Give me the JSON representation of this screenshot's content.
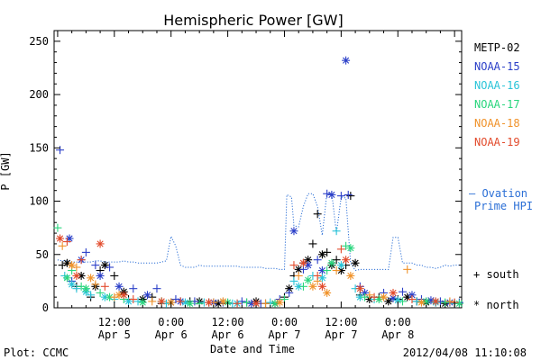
{
  "chart_data": {
    "type": "scatter",
    "title": "Hemispheric Power [GW]",
    "ylabel": "P [GW]",
    "xlabel": "Date and Time",
    "ylim": [
      0,
      260
    ],
    "yticks": [
      0,
      50,
      100,
      150,
      200,
      250
    ],
    "xlim": [
      -0.75,
      85.5
    ],
    "x_units": "hours since 2012-04-05 00:00 UT",
    "x_ticks": [
      {
        "x": 12,
        "time": "12:00",
        "date": "Apr 5"
      },
      {
        "x": 24,
        "time": "0:00",
        "date": "Apr 6"
      },
      {
        "x": 36,
        "time": "12:00",
        "date": "Apr 6"
      },
      {
        "x": 48,
        "time": "0:00",
        "date": "Apr 7"
      },
      {
        "x": 60,
        "time": "12:00",
        "date": "Apr 7"
      },
      {
        "x": 72,
        "time": "0:00",
        "date": "Apr 8"
      }
    ],
    "grid": false,
    "legend_position": "right",
    "legend": [
      {
        "name": "METP-02",
        "color": "#000000"
      },
      {
        "name": "NOAA-15",
        "color": "#2b3fc8"
      },
      {
        "name": "NOAA-16",
        "color": "#2ac4d8"
      },
      {
        "name": "NOAA-17",
        "color": "#29d67d"
      },
      {
        "name": "NOAA-18",
        "color": "#f0922a"
      },
      {
        "name": "NOAA-19",
        "color": "#e24a2b"
      }
    ],
    "ovation_label_line1": "– Ovation",
    "ovation_label_line2": "Prime HPI",
    "ovation_color": "#2b6fd6",
    "marker_south_label": "+ south",
    "marker_north_label": "* north",
    "ovation": {
      "x": [
        0,
        1,
        2,
        3,
        4,
        5,
        6,
        7,
        8,
        9,
        10,
        11,
        12,
        13,
        14,
        15,
        16,
        17,
        18,
        19,
        20,
        21,
        22,
        23,
        24,
        25,
        26,
        27,
        28,
        29,
        30,
        31,
        32,
        33,
        34,
        35,
        36,
        37,
        38,
        39,
        40,
        41,
        42,
        43,
        44,
        45,
        46,
        47,
        48,
        48.5,
        49.5,
        50,
        51,
        52,
        53,
        54,
        55,
        56,
        57,
        58,
        59,
        60,
        61,
        62,
        63,
        64,
        65,
        66,
        67,
        68,
        69,
        70,
        71,
        72,
        73,
        74,
        75,
        76,
        77,
        78,
        79,
        80,
        81,
        82,
        83,
        84,
        85
      ],
      "y": [
        45,
        44,
        44,
        43,
        43,
        43,
        43,
        43,
        44,
        44,
        43,
        43,
        43,
        43,
        44,
        43,
        43,
        42,
        42,
        42,
        42,
        42,
        43,
        44,
        67,
        58,
        40,
        38,
        38,
        38,
        40,
        39,
        39,
        39,
        39,
        39,
        39,
        39,
        39,
        38,
        38,
        38,
        38,
        38,
        37,
        37,
        37,
        36,
        36,
        106,
        104,
        77,
        76,
        95,
        107,
        107,
        95,
        68,
        108,
        108,
        70,
        104,
        103,
        42,
        35,
        36,
        36,
        36,
        36,
        36,
        36,
        36,
        66,
        66,
        42,
        42,
        42,
        40,
        40,
        38,
        38,
        37,
        38,
        40,
        39,
        40,
        40
      ]
    },
    "series": [
      {
        "name": "METP-02",
        "color": "#000000",
        "marker": "+",
        "points": [
          [
            1,
            40
          ],
          [
            4,
            20
          ],
          [
            7,
            10
          ],
          [
            9,
            35
          ],
          [
            12,
            30
          ],
          [
            15,
            8
          ],
          [
            20,
            10
          ],
          [
            22,
            4
          ],
          [
            28,
            6
          ],
          [
            32,
            5
          ],
          [
            36,
            4
          ],
          [
            40,
            5
          ],
          [
            44,
            4
          ],
          [
            48,
            10
          ],
          [
            50,
            30
          ],
          [
            52,
            42
          ],
          [
            54,
            60
          ],
          [
            55,
            88
          ],
          [
            57,
            52
          ],
          [
            59,
            45
          ],
          [
            61,
            40
          ],
          [
            62,
            105
          ],
          [
            64,
            12
          ],
          [
            68,
            10
          ],
          [
            72,
            8
          ],
          [
            76,
            6
          ],
          [
            80,
            5
          ],
          [
            84,
            4
          ]
        ]
      },
      {
        "name": "METP-02",
        "color": "#000000",
        "marker": "*",
        "points": [
          [
            2,
            42
          ],
          [
            5,
            30
          ],
          [
            8,
            20
          ],
          [
            10,
            40
          ],
          [
            14,
            15
          ],
          [
            18,
            8
          ],
          [
            24,
            5
          ],
          [
            30,
            6
          ],
          [
            34,
            4
          ],
          [
            42,
            6
          ],
          [
            46,
            4
          ],
          [
            49,
            18
          ],
          [
            51,
            36
          ],
          [
            53,
            45
          ],
          [
            56,
            50
          ],
          [
            58,
            40
          ],
          [
            60,
            35
          ],
          [
            63,
            42
          ],
          [
            66,
            8
          ],
          [
            70,
            6
          ],
          [
            74,
            10
          ],
          [
            78,
            5
          ],
          [
            82,
            4
          ]
        ]
      },
      {
        "name": "NOAA-15",
        "color": "#2b3fc8",
        "marker": "+",
        "points": [
          [
            0.5,
            148
          ],
          [
            3,
            25
          ],
          [
            6,
            52
          ],
          [
            8,
            40
          ],
          [
            11,
            38
          ],
          [
            16,
            18
          ],
          [
            21,
            18
          ],
          [
            25,
            8
          ],
          [
            29,
            6
          ],
          [
            35,
            5
          ],
          [
            39,
            6
          ],
          [
            43,
            4
          ],
          [
            47,
            8
          ],
          [
            49,
            14
          ],
          [
            52,
            36
          ],
          [
            55,
            45
          ],
          [
            57,
            107
          ],
          [
            60,
            105
          ],
          [
            61.5,
            106
          ],
          [
            64,
            20
          ],
          [
            69,
            14
          ],
          [
            73,
            15
          ],
          [
            77,
            8
          ],
          [
            81,
            6
          ],
          [
            85,
            5
          ]
        ]
      },
      {
        "name": "NOAA-15",
        "color": "#2b3fc8",
        "marker": "*",
        "points": [
          [
            2.5,
            65
          ],
          [
            5,
            45
          ],
          [
            9,
            30
          ],
          [
            13,
            20
          ],
          [
            19,
            12
          ],
          [
            26,
            6
          ],
          [
            33,
            5
          ],
          [
            41,
            4
          ],
          [
            50,
            72
          ],
          [
            53,
            40
          ],
          [
            56,
            35
          ],
          [
            58,
            106
          ],
          [
            61,
            232
          ],
          [
            65,
            14
          ],
          [
            71,
            9
          ],
          [
            75,
            12
          ],
          [
            79,
            7
          ],
          [
            83,
            5
          ]
        ]
      },
      {
        "name": "NOAA-16",
        "color": "#2ac4d8",
        "marker": "+",
        "points": [
          [
            1.5,
            30
          ],
          [
            4,
            18
          ],
          [
            7,
            12
          ],
          [
            12,
            8
          ],
          [
            17,
            6
          ],
          [
            23,
            4
          ],
          [
            31,
            5
          ],
          [
            37,
            4
          ],
          [
            45,
            5
          ],
          [
            50,
            25
          ],
          [
            54,
            30
          ],
          [
            59,
            72
          ],
          [
            63,
            18
          ],
          [
            67,
            8
          ],
          [
            76,
            6
          ],
          [
            84,
            4
          ]
        ]
      },
      {
        "name": "NOAA-16",
        "color": "#2ac4d8",
        "marker": "*",
        "points": [
          [
            3,
            22
          ],
          [
            6,
            15
          ],
          [
            10,
            10
          ],
          [
            15,
            6
          ],
          [
            27,
            5
          ],
          [
            38,
            4
          ],
          [
            51,
            20
          ],
          [
            56,
            28
          ],
          [
            60,
            40
          ],
          [
            64,
            10
          ],
          [
            72,
            7
          ],
          [
            80,
            5
          ]
        ]
      },
      {
        "name": "NOAA-17",
        "color": "#29d67d",
        "marker": "+",
        "points": [
          [
            0,
            75
          ],
          [
            3,
            35
          ],
          [
            5,
            20
          ],
          [
            9,
            14
          ],
          [
            14,
            8
          ],
          [
            22,
            6
          ],
          [
            30,
            4
          ],
          [
            40,
            5
          ],
          [
            48,
            8
          ],
          [
            52,
            20
          ],
          [
            57,
            35
          ],
          [
            61,
            58
          ],
          [
            65,
            10
          ],
          [
            73,
            6
          ],
          [
            82,
            5
          ]
        ]
      },
      {
        "name": "NOAA-17",
        "color": "#29d67d",
        "marker": "*",
        "points": [
          [
            2,
            28
          ],
          [
            6,
            18
          ],
          [
            11,
            10
          ],
          [
            18,
            5
          ],
          [
            28,
            4
          ],
          [
            36,
            5
          ],
          [
            46,
            4
          ],
          [
            53,
            26
          ],
          [
            58,
            42
          ],
          [
            62,
            56
          ],
          [
            68,
            8
          ],
          [
            78,
            6
          ],
          [
            85,
            4
          ]
        ]
      },
      {
        "name": "NOAA-18",
        "color": "#f0922a",
        "marker": "+",
        "points": [
          [
            1,
            58
          ],
          [
            4,
            38
          ],
          [
            8,
            22
          ],
          [
            12,
            10
          ],
          [
            20,
            6
          ],
          [
            33,
            5
          ],
          [
            44,
            4
          ],
          [
            51,
            30
          ],
          [
            55,
            25
          ],
          [
            59,
            35
          ],
          [
            66,
            12
          ],
          [
            74,
            36
          ],
          [
            83,
            6
          ]
        ]
      },
      {
        "name": "NOAA-18",
        "color": "#f0922a",
        "marker": "*",
        "points": [
          [
            3,
            40
          ],
          [
            7,
            28
          ],
          [
            13,
            12
          ],
          [
            24,
            5
          ],
          [
            35,
            6
          ],
          [
            47,
            5
          ],
          [
            54,
            20
          ],
          [
            57,
            14
          ],
          [
            62,
            30
          ],
          [
            69,
            10
          ],
          [
            77,
            5
          ]
        ]
      },
      {
        "name": "NOAA-19",
        "color": "#e24a2b",
        "marker": "+",
        "points": [
          [
            2,
            62
          ],
          [
            5,
            45
          ],
          [
            10,
            20
          ],
          [
            16,
            8
          ],
          [
            26,
            6
          ],
          [
            38,
            4
          ],
          [
            50,
            40
          ],
          [
            55,
            30
          ],
          [
            60,
            55
          ],
          [
            67,
            10
          ],
          [
            75,
            8
          ],
          [
            84,
            5
          ]
        ]
      },
      {
        "name": "NOAA-19",
        "color": "#e24a2b",
        "marker": "*",
        "points": [
          [
            0.5,
            65
          ],
          [
            4,
            30
          ],
          [
            9,
            60
          ],
          [
            14,
            12
          ],
          [
            22,
            6
          ],
          [
            32,
            5
          ],
          [
            42,
            4
          ],
          [
            52,
            42
          ],
          [
            56,
            20
          ],
          [
            61,
            45
          ],
          [
            64,
            18
          ],
          [
            71,
            14
          ],
          [
            80,
            6
          ]
        ]
      }
    ],
    "footer_left": "Plot: CCMC",
    "footer_right": "2012/04/08 11:10:08"
  }
}
